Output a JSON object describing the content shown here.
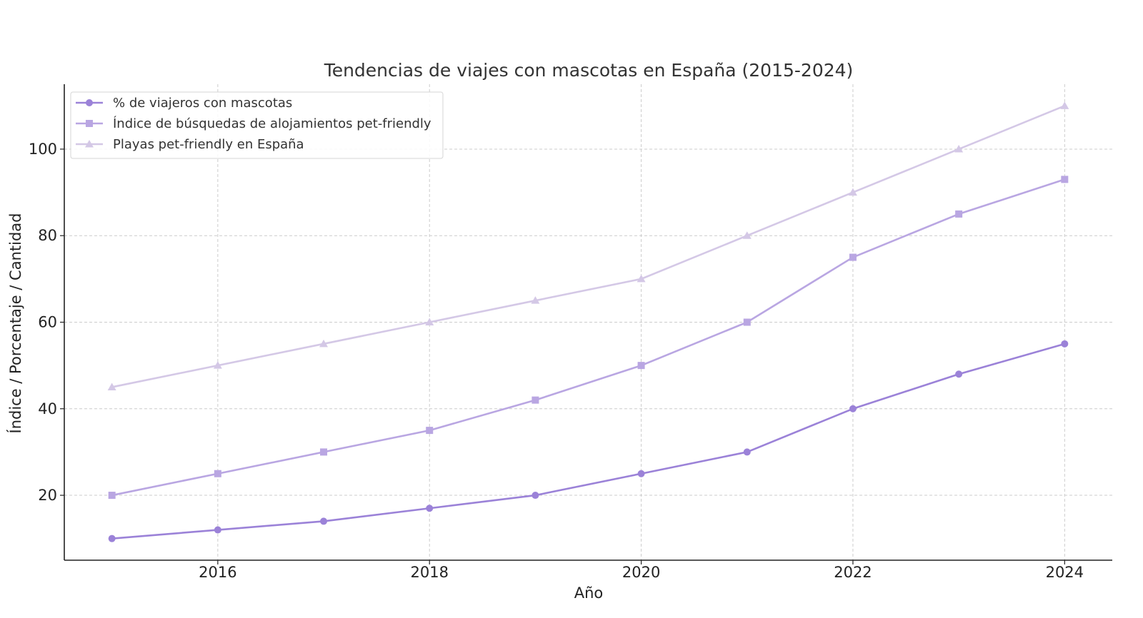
{
  "chart_data": {
    "type": "line",
    "title": "Tendencias de viajes con mascotas en España (2015-2024)",
    "xlabel": "Año",
    "ylabel": "Índice / Porcentaje / Cantidad",
    "x": [
      2015,
      2016,
      2017,
      2018,
      2019,
      2020,
      2021,
      2022,
      2023,
      2024
    ],
    "xlim": [
      2014.55,
      2024.45
    ],
    "ylim": [
      5,
      115
    ],
    "xticks": [
      2016,
      2018,
      2020,
      2022,
      2024
    ],
    "yticks": [
      20,
      40,
      60,
      80,
      100
    ],
    "grid": true,
    "legend_position": "upper-left",
    "series": [
      {
        "name": "% de viajeros con mascotas",
        "marker": "circle",
        "color": "#9b82d8",
        "values": [
          10,
          12,
          14,
          17,
          20,
          25,
          30,
          40,
          48,
          55
        ]
      },
      {
        "name": "Índice de búsquedas de alojamientos pet-friendly",
        "marker": "square",
        "color": "#b9a6e2",
        "values": [
          20,
          25,
          30,
          35,
          42,
          50,
          60,
          75,
          85,
          93
        ]
      },
      {
        "name": "Playas pet-friendly en España",
        "marker": "triangle",
        "color": "#d4c8e6",
        "values": [
          45,
          50,
          55,
          60,
          65,
          70,
          80,
          90,
          100,
          110
        ]
      }
    ]
  }
}
